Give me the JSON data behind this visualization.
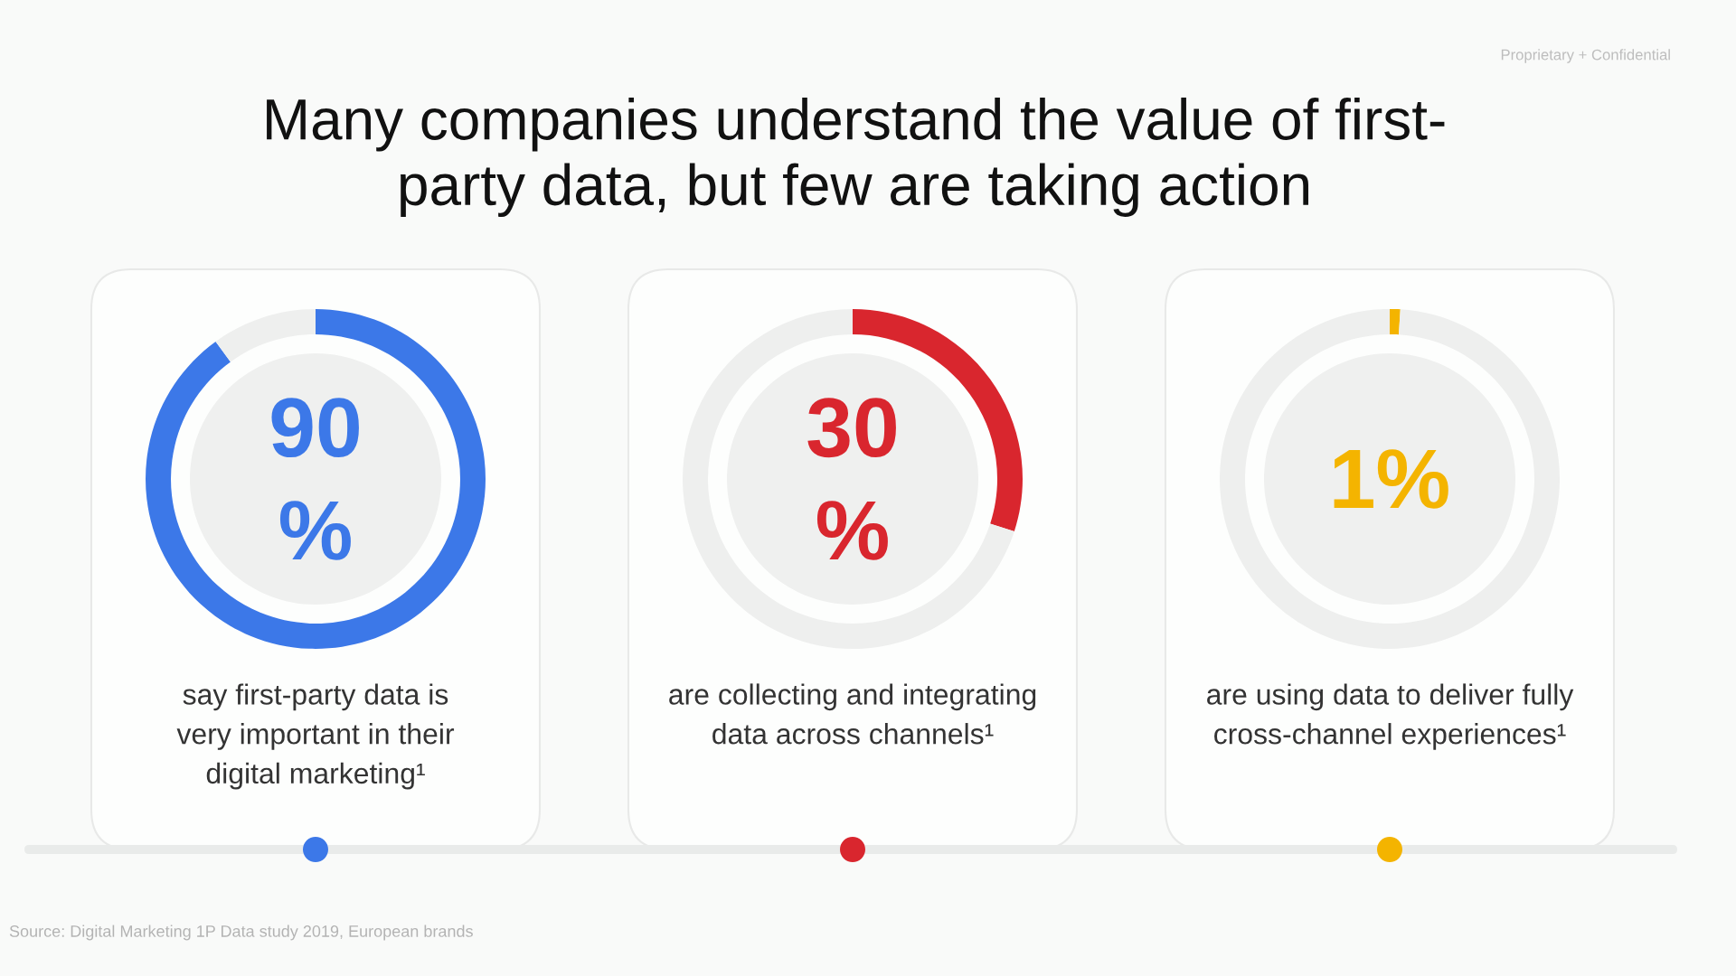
{
  "chart_data": [
    {
      "type": "donut",
      "title": "Many companies understand the value of first-party data, but few are taking action",
      "categories": [
        null,
        null
      ],
      "values": [
        90,
        10
      ],
      "colors": [
        "#3c78e8",
        "#eeefee"
      ],
      "xlabel": "say first-party data is very important in their digital marketing¹",
      "annotations": [
        "90 %",
        "Proprietary + Confidential",
        "Source: Digital Marketing 1P Data study 2019, European brands"
      ]
    },
    {
      "type": "donut",
      "categories": [
        null,
        null
      ],
      "values": [
        30,
        70
      ],
      "colors": [
        "#d9262e",
        "#eeefee"
      ],
      "xlabel": "are collecting and integrating data across channels¹",
      "annotations": [
        "30 %"
      ]
    },
    {
      "type": "donut",
      "categories": [
        null,
        null
      ],
      "values": [
        1,
        99
      ],
      "colors": [
        "#f4b400",
        "#eeefee"
      ],
      "xlabel": "are using data to deliver fully cross-channel experiences¹",
      "annotations": [
        "1%"
      ]
    }
  ]
}
